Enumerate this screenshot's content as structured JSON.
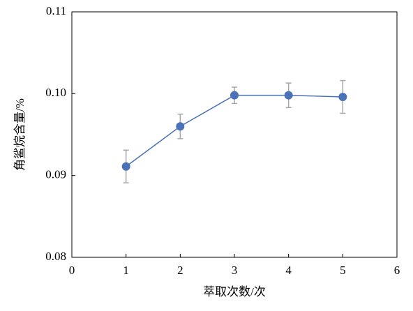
{
  "chart_data": {
    "type": "line",
    "xlabel": "萃取次数/次",
    "ylabel": "角鲨烷含量/%",
    "x": [
      1,
      2,
      3,
      4,
      5
    ],
    "series": [
      {
        "color": "#4a72b8",
        "error_color": "#a6a6a6",
        "values": [
          0.0911,
          0.096,
          0.0998,
          0.0998,
          0.0996
        ],
        "error": [
          0.002,
          0.0015,
          0.001,
          0.0015,
          0.002
        ]
      }
    ],
    "xlim": [
      0,
      6
    ],
    "xticks": [
      0,
      1,
      2,
      3,
      4,
      5,
      6
    ],
    "ylim": [
      0.08,
      0.11
    ],
    "yticks": [
      0.08,
      0.09,
      {
        "value": 0.1,
        "label": "0.10"
      },
      0.11
    ],
    "grid": false
  }
}
